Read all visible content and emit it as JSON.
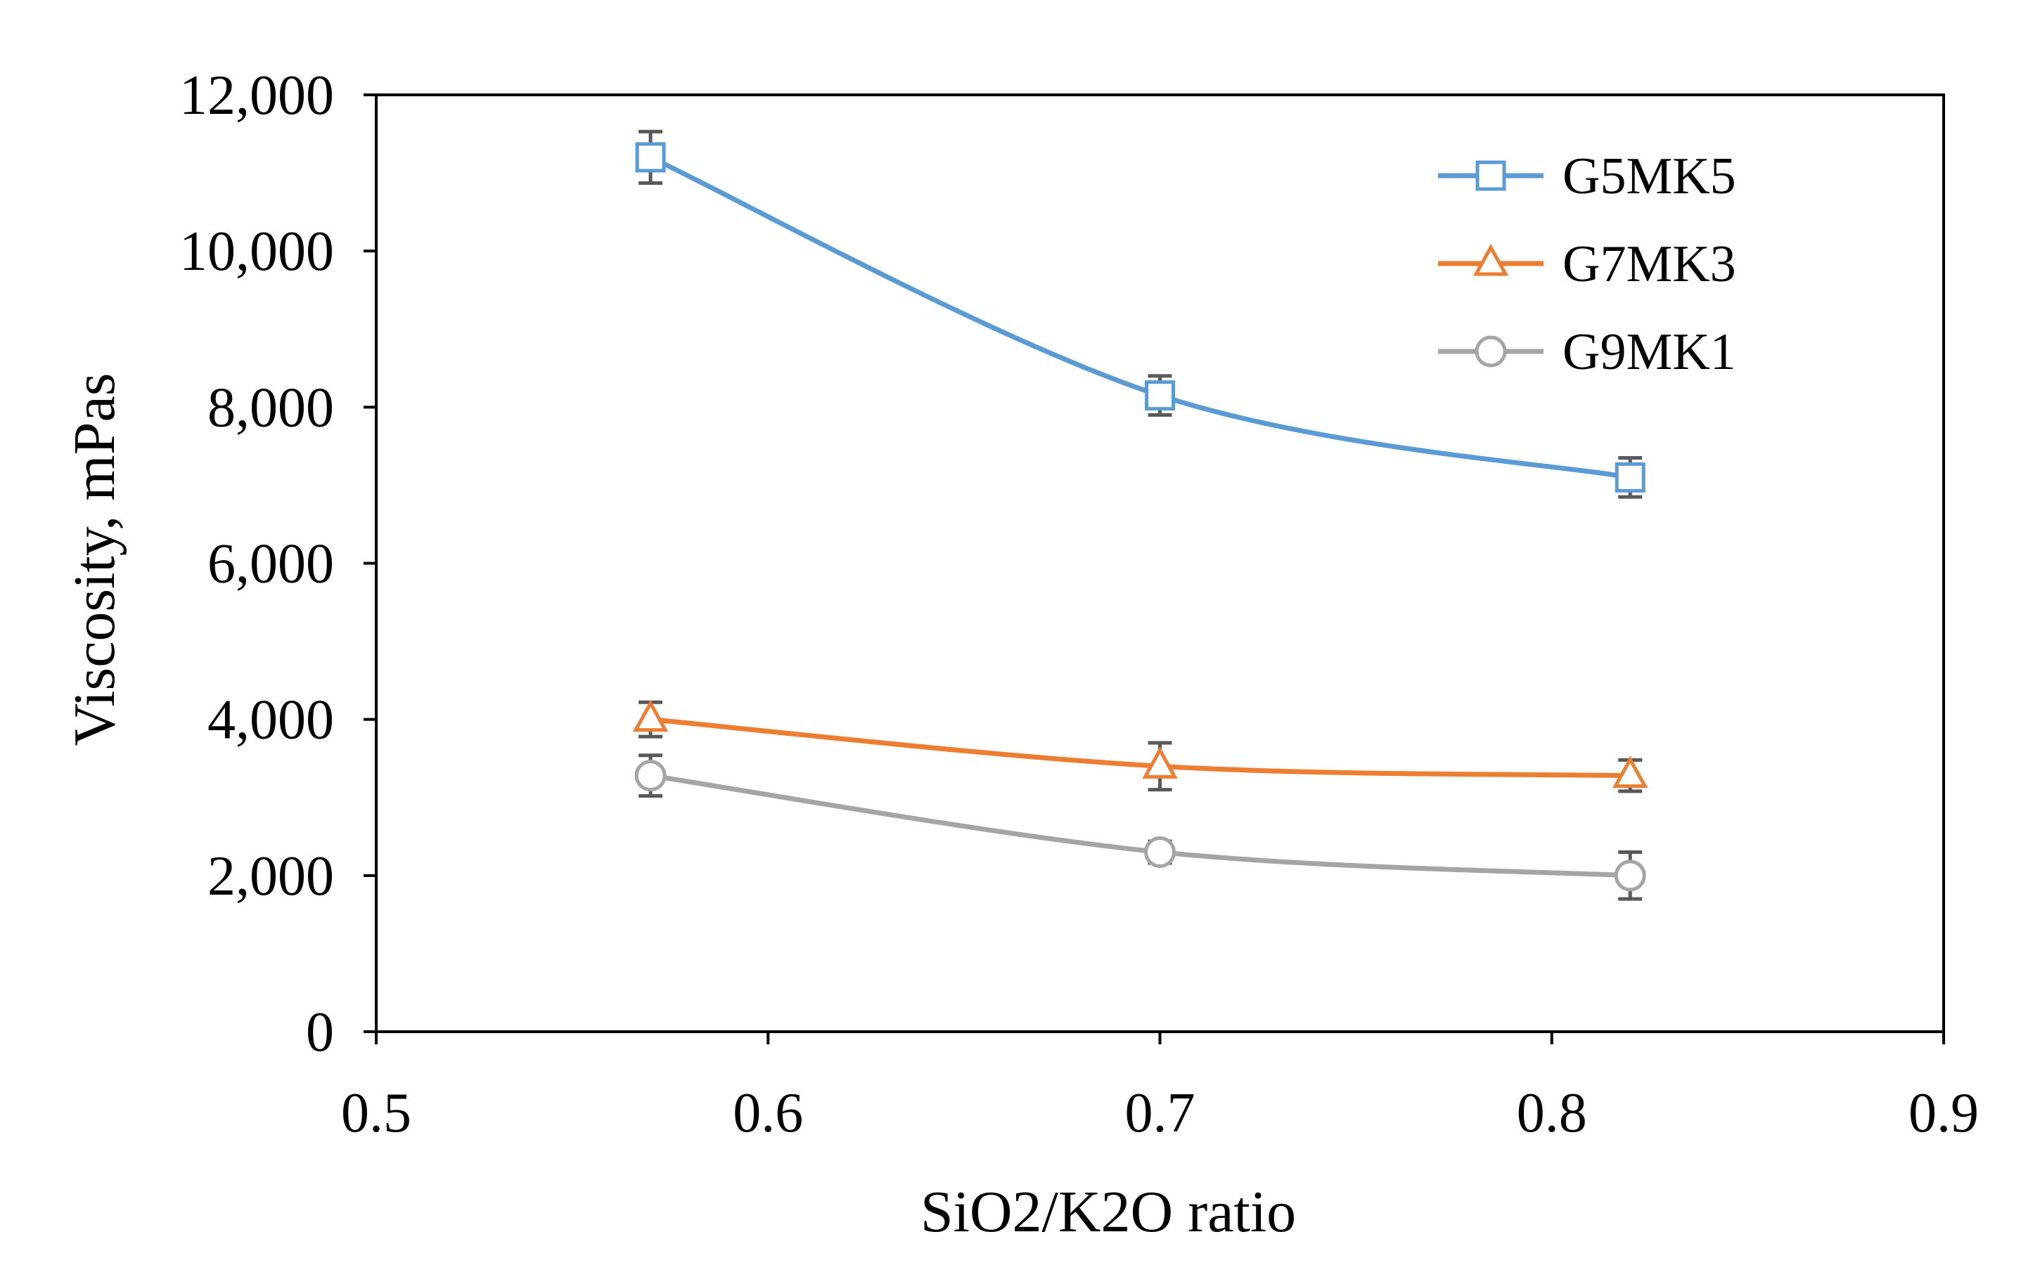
{
  "chart_data": {
    "type": "line",
    "title": "",
    "xlabel": "SiO2/K2O ratio",
    "ylabel": "Viscosity, mPas",
    "xlim": [
      0.5,
      0.9
    ],
    "ylim": [
      0,
      12000
    ],
    "x_ticks": [
      0.5,
      0.6,
      0.7,
      0.8,
      0.9
    ],
    "x_tick_labels": [
      "0.5",
      "0.6",
      "0.7",
      "0.8",
      "0.9"
    ],
    "y_ticks": [
      0,
      2000,
      4000,
      6000,
      8000,
      10000,
      12000
    ],
    "y_tick_labels": [
      "0",
      "2,000",
      "4,000",
      "6,000",
      "8,000",
      "10,000",
      "12,000"
    ],
    "grid": false,
    "smoothed": true,
    "legend_position": "top-right",
    "x": [
      0.57,
      0.7,
      0.82
    ],
    "series": [
      {
        "name": "G5MK5",
        "marker": "square",
        "color": "#5B9BD5",
        "values": [
          11200,
          8150,
          7100
        ],
        "errors": [
          330,
          250,
          250
        ]
      },
      {
        "name": "G7MK3",
        "marker": "triangle",
        "color": "#ED7D31",
        "values": [
          4000,
          3400,
          3280
        ],
        "errors": [
          220,
          300,
          200
        ]
      },
      {
        "name": "G9MK1",
        "marker": "circle",
        "color": "#A5A5A5",
        "values": [
          3280,
          2300,
          2000
        ],
        "errors": [
          260,
          140,
          300
        ]
      }
    ],
    "error_bar_color": "#595959"
  }
}
